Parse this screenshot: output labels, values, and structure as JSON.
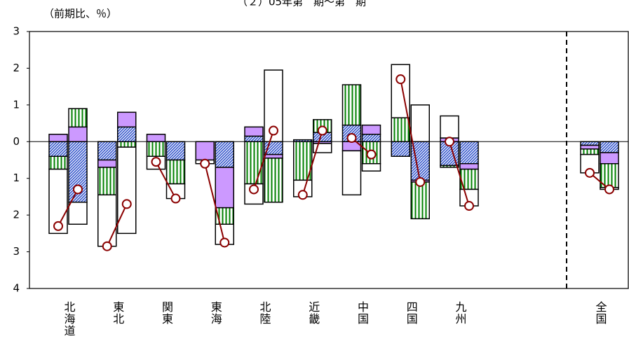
{
  "chart_data": {
    "type": "stacked-bar-pairs",
    "title": "（２）05年第　期～第　期",
    "unit_label": "（前期比、％）",
    "categories": [
      "北海道",
      "東北",
      "関東",
      "東海",
      "北陸",
      "近畿",
      "中国",
      "四国",
      "九州",
      "全国"
    ],
    "ylim": [
      -4,
      3
    ],
    "yticks": [
      3,
      2,
      1,
      0,
      {
        "value": -1,
        "label": "1"
      },
      {
        "value": -2,
        "label": "2"
      },
      {
        "value": -3,
        "label": "3"
      },
      {
        "value": -4,
        "label": "4"
      }
    ],
    "series": [
      {
        "color": "#3355cc",
        "pattern": "diagonal",
        "values": [
          [
            -0.4,
            -1.65
          ],
          [
            -0.5,
            0.4
          ],
          [
            0,
            -0.5
          ],
          [
            0,
            -0.7
          ],
          [
            0.15,
            -0.35
          ],
          [
            0.05,
            0.25
          ],
          [
            0.45,
            0.2
          ],
          [
            -0.4,
            -1.05
          ],
          [
            -0.65,
            -0.6
          ],
          [
            -0.1,
            -0.3
          ]
        ]
      },
      {
        "color": "#cc99ff",
        "pattern": "solid",
        "values": [
          [
            0.2,
            0.4
          ],
          [
            -0.2,
            0.4
          ],
          [
            0.2,
            0
          ],
          [
            -0.5,
            -1.1
          ],
          [
            0.25,
            -0.1
          ],
          [
            0,
            -0.05
          ],
          [
            -0.25,
            0.25
          ],
          [
            0,
            -0.05
          ],
          [
            0.1,
            -0.15
          ],
          [
            -0.1,
            -0.3
          ]
        ]
      },
      {
        "color": "#008000",
        "pattern": "vertical",
        "values": [
          [
            -0.35,
            0.5
          ],
          [
            -0.75,
            -0.15
          ],
          [
            -0.4,
            -0.65
          ],
          [
            0,
            -0.45
          ],
          [
            -1.15,
            -1.2
          ],
          [
            -1.05,
            0.35
          ],
          [
            1.1,
            -0.6
          ],
          [
            0.65,
            -1.0
          ],
          [
            -0.05,
            -0.55
          ],
          [
            -0.15,
            -0.65
          ]
        ]
      },
      {
        "color": "#ffffff",
        "pattern": "solid",
        "values": [
          [
            -1.75,
            -0.6
          ],
          [
            -1.4,
            -2.35
          ],
          [
            -0.35,
            -0.4
          ],
          [
            -0.1,
            -0.55
          ],
          [
            -0.55,
            1.95
          ],
          [
            -0.45,
            -0.25
          ],
          [
            -1.2,
            -0.2
          ],
          [
            1.45,
            1.0
          ],
          [
            0.6,
            -0.45
          ],
          [
            -0.5,
            -0.05
          ]
        ]
      }
    ],
    "line": {
      "color": "#8b0000",
      "values": [
        [
          -2.3,
          -1.3
        ],
        [
          -2.85,
          -1.7
        ],
        [
          -0.55,
          -1.55
        ],
        [
          -0.6,
          -2.75
        ],
        [
          -1.3,
          0.3
        ],
        [
          -1.45,
          0.3
        ],
        [
          0.1,
          -0.35
        ],
        [
          1.7,
          -1.1
        ],
        [
          0,
          -1.75
        ],
        [
          -0.85,
          -1.3
        ]
      ]
    },
    "divider_before": 9
  }
}
